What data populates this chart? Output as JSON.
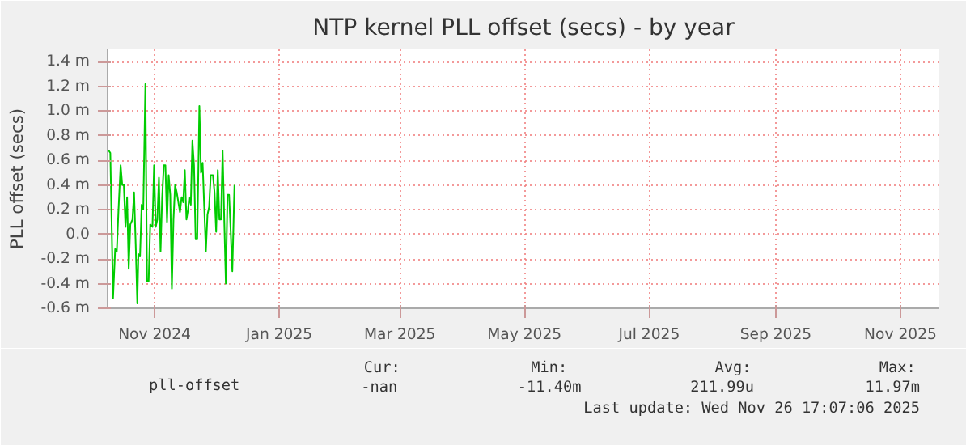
{
  "chart_data": {
    "type": "line",
    "title": "NTP kernel PLL offset (secs) - by year",
    "ylabel": "PLL offset (secs)",
    "x": [
      "2024-10-09T13:00",
      "2024-10-10T08:00",
      "2024-10-11T16:00",
      "2024-10-12T17:00",
      "2024-10-13T12:00",
      "2024-10-14T07:00",
      "2024-10-15T09:00",
      "2024-10-16T04:00",
      "2024-10-16T23:00",
      "2024-10-17T18:00",
      "2024-10-18T13:00",
      "2024-10-19T08:00",
      "2024-10-20T03:00",
      "2024-10-21T04:00",
      "2024-10-21T23:00",
      "2024-10-22T18:00",
      "2024-10-23T13:00",
      "2024-10-24T02:00",
      "2024-10-24T21:00",
      "2024-10-25T16:00",
      "2024-10-26T11:00",
      "2024-10-27T12:00",
      "2024-10-28T07:00",
      "2024-10-29T02:00",
      "2024-10-29T21:00",
      "2024-10-30T23:00",
      "2024-10-31T18:00",
      "2024-11-01T13:00",
      "2024-11-02T08:00",
      "2024-11-03T03:00",
      "2024-11-03T22:00",
      "2024-11-04T17:00",
      "2024-11-05T12:00",
      "2024-11-06T07:00",
      "2024-11-07T02:00",
      "2024-11-07T21:00",
      "2024-11-08T16:00",
      "2024-11-09T11:00",
      "2024-11-10T06:00",
      "2024-11-11T01:00",
      "2024-11-11T20:00",
      "2024-11-12T15:00",
      "2024-11-13T10:00",
      "2024-11-14T05:00",
      "2024-11-15T00:00",
      "2024-11-15T19:00",
      "2024-11-16T14:00",
      "2024-11-17T09:00",
      "2024-11-17T22:00",
      "2024-11-18T17:00",
      "2024-11-19T12:00",
      "2024-11-20T07:00",
      "2024-11-21T02:00",
      "2024-11-21T21:00",
      "2024-11-22T22:00",
      "2024-11-23T17:00",
      "2024-11-24T12:00",
      "2024-11-25T07:00",
      "2024-11-26T02:00",
      "2024-11-26T21:00",
      "2024-11-27T16:00",
      "2024-11-28T11:00",
      "2024-11-29T13:00",
      "2024-11-30T08:00",
      "2024-12-01T03:00",
      "2024-12-01T22:00",
      "2024-12-02T17:00",
      "2024-12-03T12:00",
      "2024-12-04T07:00",
      "2024-12-05T02:00",
      "2024-12-05T21:00",
      "2024-12-06T16:00",
      "2024-12-07T11:00",
      "2024-12-08T06:00",
      "2024-12-09T01:00",
      "2024-12-10T02:00"
    ],
    "series": [
      {
        "name": "pll-offset",
        "color": "#00cc00",
        "values": [
          0.68,
          0.66,
          -0.52,
          -0.12,
          -0.14,
          0.18,
          0.56,
          0.4,
          0.4,
          0.06,
          0.3,
          -0.28,
          0.08,
          0.12,
          0.34,
          -0.08,
          -0.56,
          -0.16,
          -0.18,
          0.24,
          0.2,
          1.22,
          -0.38,
          -0.38,
          0.08,
          0.06,
          0.56,
          0.06,
          0.12,
          0.46,
          -0.14,
          0.3,
          0.56,
          0.56,
          0.1,
          0.48,
          0.32,
          -0.44,
          0.12,
          0.4,
          0.34,
          0.26,
          0.18,
          0.3,
          0.26,
          0.52,
          0.12,
          0.2,
          0.3,
          0.24,
          0.76,
          0.56,
          -0.04,
          -0.04,
          1.04,
          0.5,
          0.58,
          0.22,
          -0.14,
          0.16,
          0.22,
          0.48,
          0.48,
          0.34,
          0.02,
          0.52,
          0.12,
          0.12,
          0.68,
          0.12,
          -0.4,
          0.32,
          0.32,
          0.02,
          -0.3,
          0.4
        ]
      }
    ],
    "xlim": [
      "2024-10-09",
      "2025-11-20"
    ],
    "xticks": [
      {
        "value": "2024-11-01",
        "label": "Nov 2024"
      },
      {
        "value": "2025-01-01",
        "label": "Jan 2025"
      },
      {
        "value": "2025-03-01",
        "label": "Mar 2025"
      },
      {
        "value": "2025-05-01",
        "label": "May 2025"
      },
      {
        "value": "2025-07-01",
        "label": "Jul 2025"
      },
      {
        "value": "2025-09-01",
        "label": "Sep 2025"
      },
      {
        "value": "2025-11-01",
        "label": "Nov 2025"
      }
    ],
    "ylim": [
      -0.6,
      1.5
    ],
    "yticks": [
      {
        "value": -0.6,
        "label": "-0.6 m"
      },
      {
        "value": -0.4,
        "label": "-0.4 m"
      },
      {
        "value": -0.2,
        "label": "-0.2 m"
      },
      {
        "value": 0,
        "label": "0.0"
      },
      {
        "value": 0.2,
        "label": "0.2 m"
      },
      {
        "value": 0.4,
        "label": "0.4 m"
      },
      {
        "value": 0.6,
        "label": "0.6 m"
      },
      {
        "value": 0.8,
        "label": "0.8 m"
      },
      {
        "value": 1.0,
        "label": "1.0 m"
      },
      {
        "value": 1.2,
        "label": "1.2 m"
      },
      {
        "value": 1.4,
        "label": "1.4 m"
      }
    ],
    "grid": true,
    "legend": "bottom",
    "annotations": [
      "Cur:",
      "-nan",
      "Min:",
      "-11.40m",
      "Avg:",
      "211.99u",
      "Max:",
      "11.97m",
      "Last update: Wed Nov 26 17:07:06 2025"
    ]
  }
}
